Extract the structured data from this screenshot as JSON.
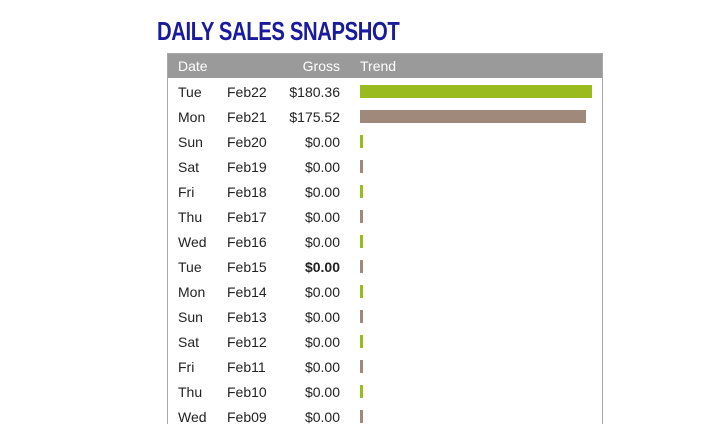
{
  "title": "DAILY SALES SNAPSHOT",
  "table": {
    "headers": {
      "date": "Date",
      "gross": "Gross",
      "trend": "Trend"
    },
    "colors": {
      "green": "#99bb1e",
      "brown": "#a0887a",
      "header_bg": "#9a9a9a",
      "title": "#1a1a9c"
    },
    "rows": [
      {
        "day": "Tue",
        "date": "Feb22",
        "gross": "$180.36",
        "value": 180.36,
        "bold": false
      },
      {
        "day": "Mon",
        "date": "Feb21",
        "gross": "$175.52",
        "value": 175.52,
        "bold": false
      },
      {
        "day": "Sun",
        "date": "Feb20",
        "gross": "$0.00",
        "value": 0,
        "bold": false
      },
      {
        "day": "Sat",
        "date": "Feb19",
        "gross": "$0.00",
        "value": 0,
        "bold": false
      },
      {
        "day": "Fri",
        "date": "Feb18",
        "gross": "$0.00",
        "value": 0,
        "bold": false
      },
      {
        "day": "Thu",
        "date": "Feb17",
        "gross": "$0.00",
        "value": 0,
        "bold": false
      },
      {
        "day": "Wed",
        "date": "Feb16",
        "gross": "$0.00",
        "value": 0,
        "bold": false
      },
      {
        "day": "Tue",
        "date": "Feb15",
        "gross": "$0.00",
        "value": 0,
        "bold": true
      },
      {
        "day": "Mon",
        "date": "Feb14",
        "gross": "$0.00",
        "value": 0,
        "bold": false
      },
      {
        "day": "Sun",
        "date": "Feb13",
        "gross": "$0.00",
        "value": 0,
        "bold": false
      },
      {
        "day": "Sat",
        "date": "Feb12",
        "gross": "$0.00",
        "value": 0,
        "bold": false
      },
      {
        "day": "Fri",
        "date": "Feb11",
        "gross": "$0.00",
        "value": 0,
        "bold": false
      },
      {
        "day": "Thu",
        "date": "Feb10",
        "gross": "$0.00",
        "value": 0,
        "bold": false
      },
      {
        "day": "Wed",
        "date": "Feb09",
        "gross": "$0.00",
        "value": 0,
        "bold": false
      }
    ]
  }
}
